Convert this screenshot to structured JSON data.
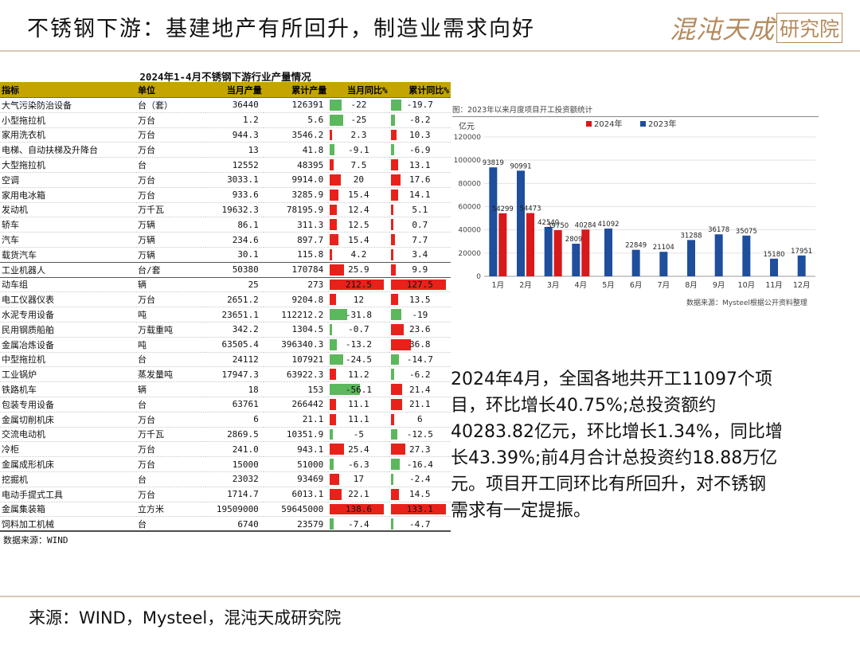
{
  "header": {
    "title": "不锈钢下游：基建地产有所回升，制造业需求向好",
    "logo_main": "混沌天成",
    "logo_sub": "研究院"
  },
  "table": {
    "title": "2024年1-4月不锈钢下游行业产量情况",
    "columns": [
      "指标",
      "单位",
      "当月产量",
      "累计产量",
      "当月同比%",
      "累计同比%"
    ],
    "rows": [
      [
        "大气污染防治设备",
        "台（套）",
        "36440",
        "126391",
        "-22",
        "-19.7"
      ],
      [
        "小型拖拉机",
        "万台",
        "1.2",
        "5.6",
        "-25",
        "-8.2"
      ],
      [
        "家用洗衣机",
        "万台",
        "944.3",
        "3546.2",
        "2.3",
        "10.3"
      ],
      [
        "电梯、自动扶梯及升降台",
        "万台",
        "13",
        "41.8",
        "-9.1",
        "-6.9"
      ],
      [
        "大型拖拉机",
        "台",
        "12552",
        "48395",
        "7.5",
        "13.1"
      ],
      [
        "空调",
        "万台",
        "3033.1",
        "9914.0",
        "20",
        "17.6"
      ],
      [
        "家用电冰箱",
        "万台",
        "933.6",
        "3285.9",
        "15.4",
        "14.1"
      ],
      [
        "发动机",
        "万千瓦",
        "19632.3",
        "78195.9",
        "12.4",
        "5.1"
      ],
      [
        "轿车",
        "万辆",
        "86.1",
        "311.3",
        "12.5",
        "0.7"
      ],
      [
        "汽车",
        "万辆",
        "234.6",
        "897.7",
        "15.4",
        "7.7"
      ],
      [
        "载货汽车",
        "万辆",
        "30.1",
        "115.8",
        "4.2",
        "3.4"
      ],
      [
        "工业机器人",
        "台/套",
        "50380",
        "170784",
        "25.9",
        "9.9"
      ],
      [
        "动车组",
        "辆",
        "25",
        "273",
        "212.5",
        "127.5"
      ],
      [
        "电工仪器仪表",
        "万台",
        "2651.2",
        "9204.8",
        "12",
        "13.5"
      ],
      [
        "水泥专用设备",
        "吨",
        "23651.1",
        "112212.2",
        "-31.8",
        "-19"
      ],
      [
        "民用钢质船舶",
        "万载重吨",
        "342.2",
        "1304.5",
        "-0.7",
        "23.6"
      ],
      [
        "金属冶炼设备",
        "吨",
        "63505.4",
        "396340.3",
        "-13.2",
        "36.8"
      ],
      [
        "中型拖拉机",
        "台",
        "24112",
        "107921",
        "-24.5",
        "-14.7"
      ],
      [
        "工业锅炉",
        "蒸发量吨",
        "17947.3",
        "63922.3",
        "11.2",
        "-6.2"
      ],
      [
        "铁路机车",
        "辆",
        "18",
        "153",
        "-56.1",
        "21.4"
      ],
      [
        "包装专用设备",
        "台",
        "63761",
        "266442",
        "11.1",
        "21.1"
      ],
      [
        "金属切削机床",
        "万台",
        "6",
        "21.1",
        "11.1",
        "6"
      ],
      [
        "交流电动机",
        "万千瓦",
        "2869.5",
        "10351.9",
        "-5",
        "-12.5"
      ],
      [
        "冷柜",
        "万台",
        "241.0",
        "943.1",
        "25.4",
        "27.3"
      ],
      [
        "金属成形机床",
        "万台",
        "15000",
        "51000",
        "-6.3",
        "-16.4"
      ],
      [
        "挖掘机",
        "台",
        "23032",
        "93469",
        "17",
        "-2.4"
      ],
      [
        "电动手提式工具",
        "万台",
        "1714.7",
        "6013.1",
        "22.1",
        "14.5"
      ],
      [
        "金属集装箱",
        "立方米",
        "19509000",
        "59645000",
        "138.6",
        "133.1"
      ],
      [
        "饲料加工机械",
        "台",
        "6740",
        "23579",
        "-7.4",
        "-4.7"
      ]
    ],
    "source": "数据来源：WIND"
  },
  "chart_data": {
    "type": "bar",
    "title": "图：2023年以来月度项目开工投资额统计",
    "ylabel": "亿元",
    "categories": [
      "1月",
      "2月",
      "3月",
      "4月",
      "5月",
      "6月",
      "7月",
      "8月",
      "9月",
      "10月",
      "11月",
      "12月"
    ],
    "series": [
      {
        "name": "2024年",
        "color": "#d7191c",
        "values": [
          54299,
          54473,
          39750,
          40284,
          null,
          null,
          null,
          null,
          null,
          null,
          null,
          null
        ]
      },
      {
        "name": "2023年",
        "color": "#1f4e9c",
        "values": [
          93819,
          90991,
          42540,
          28093,
          41092,
          22849,
          21104,
          31288,
          36178,
          35075,
          15180,
          17951
        ]
      }
    ],
    "data_labels_2024": [
      "54299",
      "54473",
      "39750",
      "40284",
      "",
      "",
      "",
      "",
      "",
      "",
      "",
      ""
    ],
    "data_labels_2023": [
      "93819",
      "90991",
      "42540",
      "28093",
      "41092",
      "22849",
      "21104",
      "31288",
      "36178",
      "35075",
      "15180",
      "17951"
    ],
    "yticks": [
      0,
      20000,
      40000,
      60000,
      80000,
      100000,
      120000
    ],
    "ytick_labels": [
      "0",
      "20000",
      "40000",
      "60000",
      "80000",
      "100000",
      "120000"
    ],
    "ylim": [
      0,
      120000
    ],
    "grid": true,
    "legend_position": "top-left",
    "source": "数据来源：Mysteel根据公开资料整理"
  },
  "paragraph": {
    "line1": "2024年4月，全国各地共开工11097个项",
    "line2": "目，环比增长40.75%;总投资额约",
    "line3": "40283.82亿元，环比增长1.34%，同比增",
    "line4": "长43.39%;前4月合计总投资约18.88万亿",
    "line5": "元。项目开工同环比有所回升，对不锈钢",
    "line6": "需求有一定提振。"
  },
  "footer": {
    "source": "来源：WIND，Mysteel，混沌天成研究院"
  }
}
